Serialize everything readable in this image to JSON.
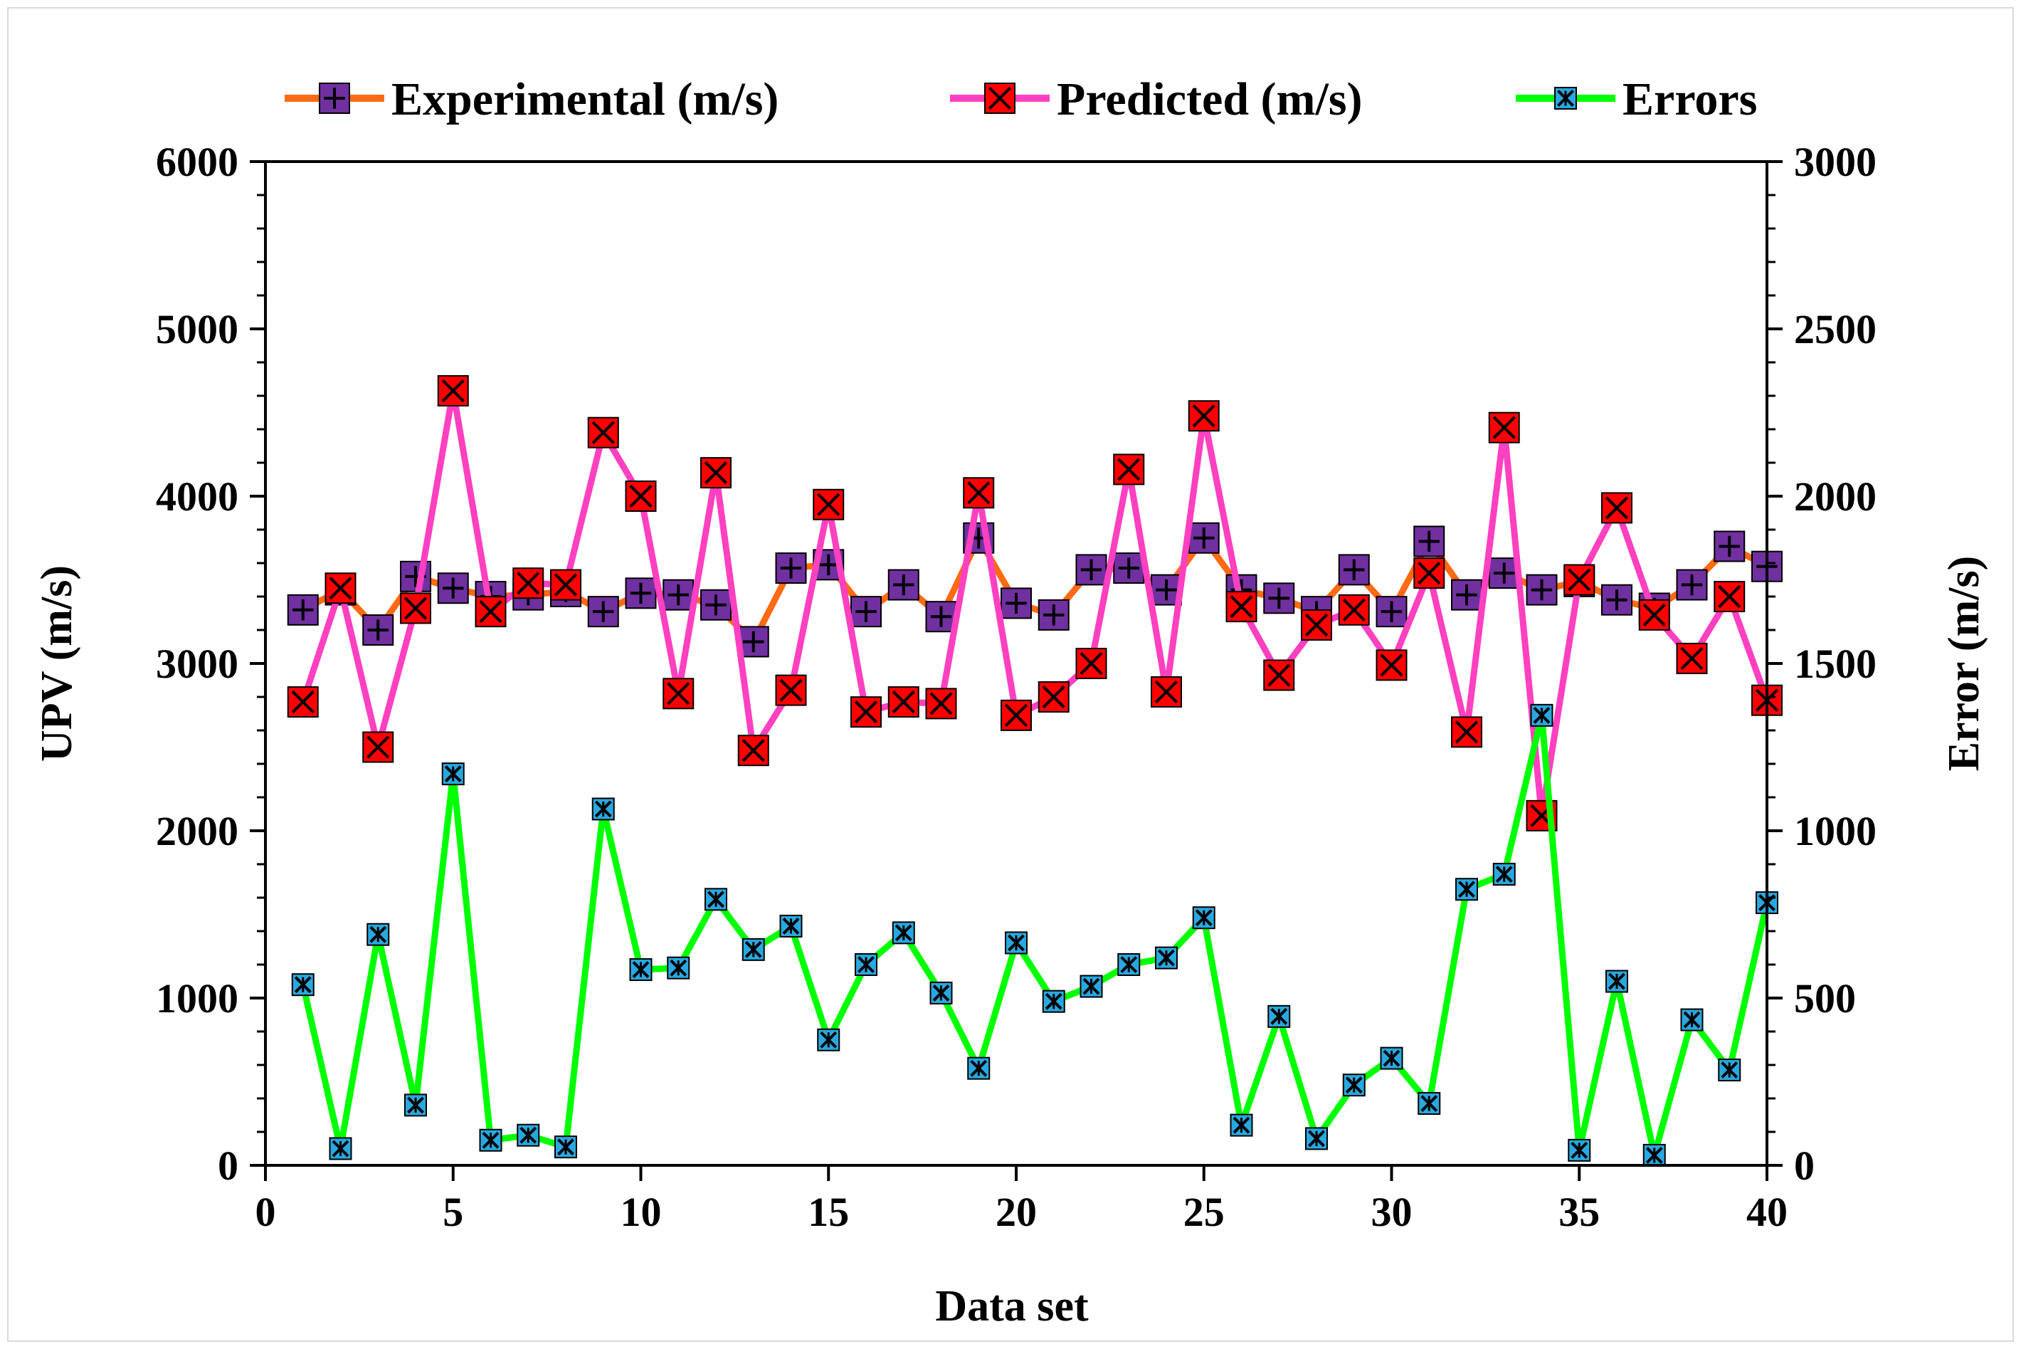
{
  "chart_data": {
    "type": "line",
    "xlabel": "Data set",
    "ylabel": "UPV (m/s)",
    "y2label": "Error (m/s)",
    "xlim": [
      0,
      40
    ],
    "ylim": [
      0,
      6000
    ],
    "y2lim": [
      0,
      3000
    ],
    "xticks": [
      0,
      5,
      10,
      15,
      20,
      25,
      30,
      35,
      40
    ],
    "yticks": [
      0,
      1000,
      2000,
      3000,
      4000,
      5000,
      6000
    ],
    "y2ticks": [
      0,
      500,
      1000,
      1500,
      2000,
      2500,
      3000
    ],
    "grid": false,
    "legend_position": "top",
    "x": [
      1,
      2,
      3,
      4,
      5,
      6,
      7,
      8,
      9,
      10,
      11,
      12,
      13,
      14,
      15,
      16,
      17,
      18,
      19,
      20,
      21,
      22,
      23,
      24,
      25,
      26,
      27,
      28,
      29,
      30,
      31,
      32,
      33,
      34,
      35,
      36,
      37,
      38,
      39,
      40
    ],
    "series": [
      {
        "name": "Experimental (m/s)",
        "axis": "left",
        "line_color": "#ff6a13",
        "marker_fill": "#7030a0",
        "marker": "square-plus",
        "values": [
          3320,
          3440,
          3200,
          3520,
          3450,
          3400,
          3410,
          3430,
          3310,
          3420,
          3410,
          3350,
          3130,
          3570,
          3590,
          3310,
          3470,
          3280,
          3750,
          3360,
          3290,
          3560,
          3570,
          3440,
          3750,
          3440,
          3390,
          3310,
          3560,
          3310,
          3730,
          3410,
          3540,
          3440,
          3490,
          3380,
          3330,
          3470,
          3700,
          3580
        ]
      },
      {
        "name": "Predicted (m/s)",
        "axis": "left",
        "line_color": "#ff40c0",
        "marker_fill": "#ff0000",
        "marker": "square-x",
        "values": [
          2770,
          3450,
          2500,
          3330,
          4630,
          3310,
          3480,
          3470,
          4380,
          4000,
          2820,
          4140,
          2480,
          2840,
          3950,
          2710,
          2770,
          2760,
          4020,
          2690,
          2800,
          3000,
          4160,
          2830,
          4480,
          3340,
          2930,
          3230,
          3320,
          2990,
          3540,
          2590,
          4410,
          2090,
          3500,
          3930,
          3290,
          3030,
          3400,
          2780
        ]
      },
      {
        "name": "Errors",
        "axis": "right",
        "line_color": "#00ff00",
        "marker_fill": "#29a8e0",
        "marker": "square-x-small",
        "values": [
          540,
          50,
          690,
          180,
          1170,
          75,
          90,
          55,
          1065,
          585,
          590,
          795,
          645,
          715,
          375,
          600,
          695,
          515,
          290,
          665,
          490,
          535,
          600,
          620,
          740,
          120,
          445,
          80,
          240,
          320,
          185,
          825,
          870,
          1345,
          45,
          550,
          30,
          435,
          285,
          785
        ]
      }
    ]
  }
}
